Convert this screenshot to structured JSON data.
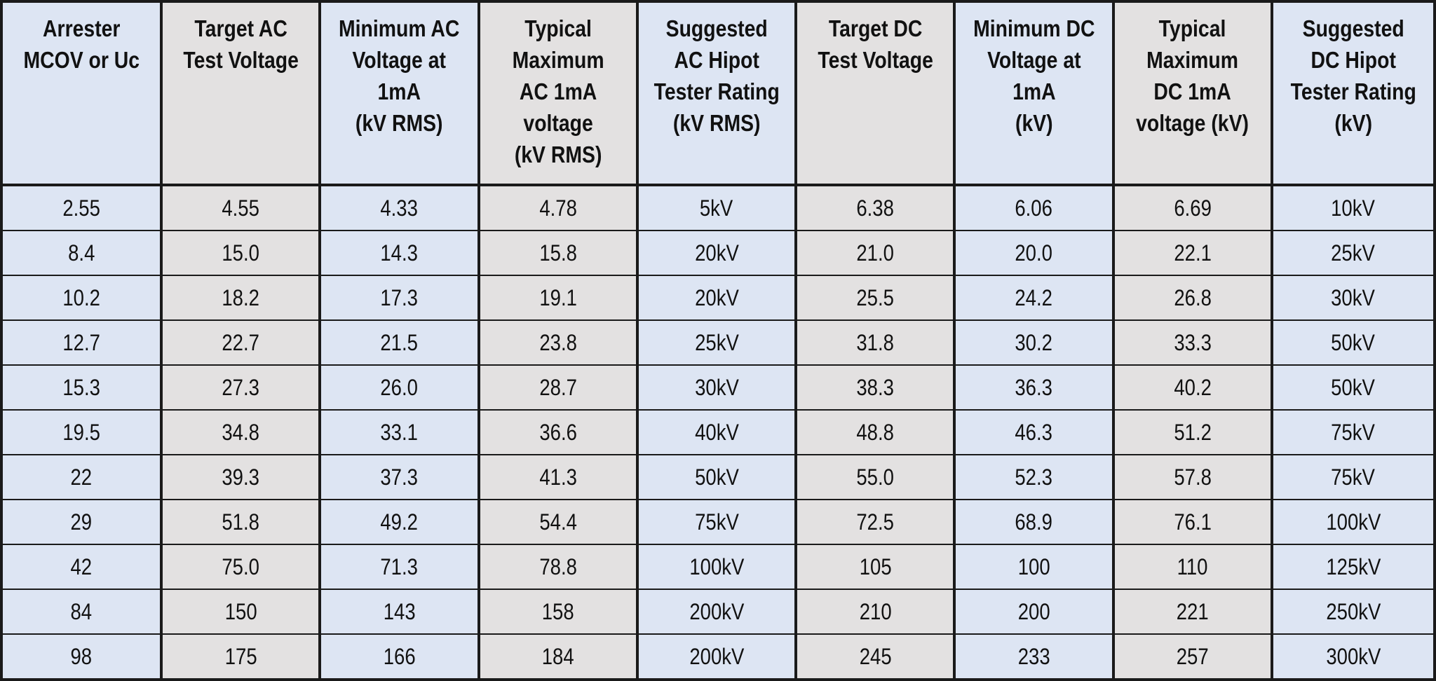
{
  "table": {
    "headers": [
      "Arrester\nMCOV or Uc",
      "Target AC\nTest Voltage",
      "Minimum AC\nVoltage at\n1mA\n(kV RMS)",
      "Typical\nMaximum\nAC  1mA\nvoltage\n(kV RMS)",
      "Suggested\nAC Hipot\nTester Rating\n(kV RMS)",
      "Target DC\nTest Voltage",
      "Minimum DC\nVoltage at\n1mA\n(kV)",
      "Typical\nMaximum\nDC  1mA\nvoltage (kV)",
      "Suggested\nDC Hipot\nTester Rating\n(kV)"
    ],
    "rows": [
      [
        "2.55",
        "4.55",
        "4.33",
        "4.78",
        "5kV",
        "6.38",
        "6.06",
        "6.69",
        "10kV"
      ],
      [
        "8.4",
        "15.0",
        "14.3",
        "15.8",
        "20kV",
        "21.0",
        "20.0",
        "22.1",
        "25kV"
      ],
      [
        "10.2",
        "18.2",
        "17.3",
        "19.1",
        "20kV",
        "25.5",
        "24.2",
        "26.8",
        "30kV"
      ],
      [
        "12.7",
        "22.7",
        "21.5",
        "23.8",
        "25kV",
        "31.8",
        "30.2",
        "33.3",
        "50kV"
      ],
      [
        "15.3",
        "27.3",
        "26.0",
        "28.7",
        "30kV",
        "38.3",
        "36.3",
        "40.2",
        "50kV"
      ],
      [
        "19.5",
        "34.8",
        "33.1",
        "36.6",
        "40kV",
        "48.8",
        "46.3",
        "51.2",
        "75kV"
      ],
      [
        "22",
        "39.3",
        "37.3",
        "41.3",
        "50kV",
        "55.0",
        "52.3",
        "57.8",
        "75kV"
      ],
      [
        "29",
        "51.8",
        "49.2",
        "54.4",
        "75kV",
        "72.5",
        "68.9",
        "76.1",
        "100kV"
      ],
      [
        "42",
        "75.0",
        "71.3",
        "78.8",
        "100kV",
        "105",
        "100",
        "110",
        "125kV"
      ],
      [
        "84",
        "150",
        "143",
        "158",
        "200kV",
        "210",
        "200",
        "221",
        "250kV"
      ],
      [
        "98",
        "175",
        "166",
        "184",
        "200kV",
        "245",
        "233",
        "257",
        "300kV"
      ]
    ]
  },
  "colors": {
    "blue_column": "#dde5f3",
    "gray_column": "#e3e1e1",
    "border": "#1a1a1a",
    "text": "#111111"
  },
  "column_shading": [
    "blue",
    "gray",
    "blue",
    "gray",
    "blue",
    "gray",
    "blue",
    "gray",
    "blue"
  ]
}
